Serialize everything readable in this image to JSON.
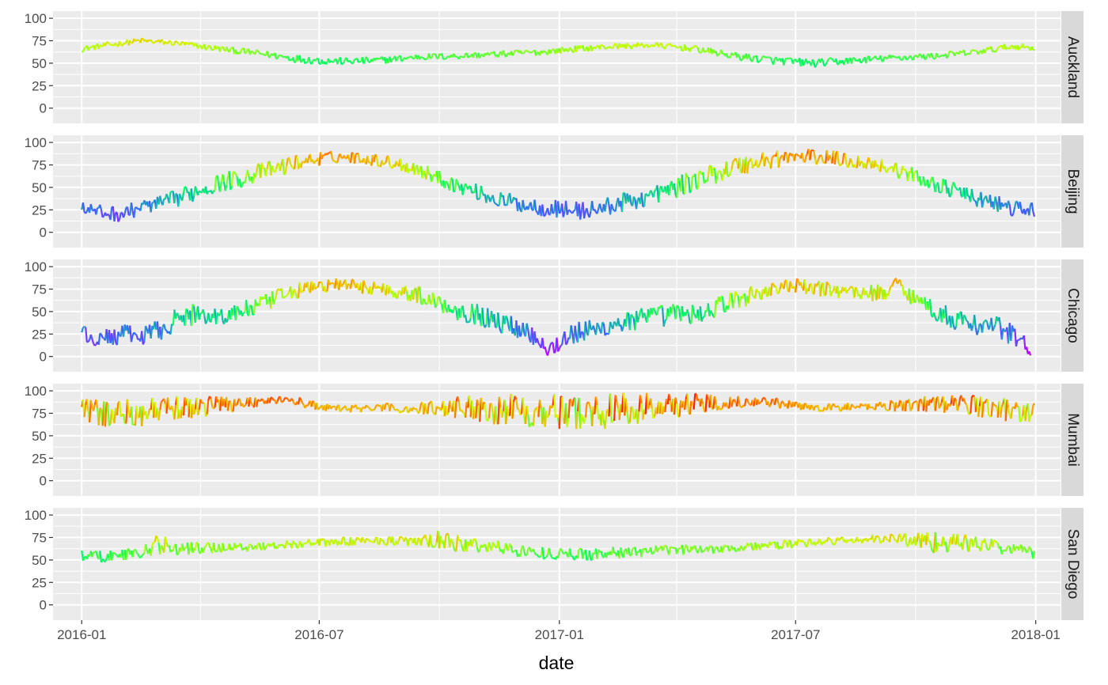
{
  "chart_data": {
    "type": "line",
    "xlabel": "date",
    "ylabel": "",
    "x_ticks": [
      "2016-01",
      "2016-07",
      "2017-01",
      "2017-07",
      "2018-01"
    ],
    "y_ticks": [
      0,
      25,
      50,
      75,
      100
    ],
    "xlim": [
      "2015-12-10",
      "2018-01-20"
    ],
    "ylim": [
      -17,
      108
    ],
    "grid": true,
    "legend": "none",
    "color_scale": {
      "description": "rainbow hue mapped to value",
      "stops": [
        {
          "value": 0,
          "color": "#cc00ff"
        },
        {
          "value": 25,
          "color": "#3366ff"
        },
        {
          "value": 50,
          "color": "#00ff66"
        },
        {
          "value": 70,
          "color": "#ccff00"
        },
        {
          "value": 85,
          "color": "#ff9900"
        },
        {
          "value": 100,
          "color": "#ff0000"
        }
      ]
    },
    "panels": [
      {
        "strip": "Auckland",
        "x": [
          "2016-01-01",
          "2016-01-20",
          "2016-02-15",
          "2016-03-15",
          "2016-04-15",
          "2016-05-15",
          "2016-06-15",
          "2016-07-01",
          "2016-07-20",
          "2016-08-15",
          "2016-09-15",
          "2016-10-15",
          "2016-11-15",
          "2016-12-15",
          "2017-01-15",
          "2017-02-15",
          "2017-03-15",
          "2017-04-15",
          "2017-05-15",
          "2017-06-15",
          "2017-07-15",
          "2017-08-15",
          "2017-09-15",
          "2017-10-15",
          "2017-11-15",
          "2017-12-15",
          "2017-12-31"
        ],
        "y": [
          66,
          70,
          75,
          72,
          66,
          61,
          55,
          53,
          52,
          53,
          57,
          58,
          60,
          62,
          66,
          69,
          70,
          66,
          58,
          53,
          50,
          53,
          56,
          58,
          62,
          69,
          67
        ],
        "spread": [
          7,
          7,
          7,
          7,
          8,
          8,
          10,
          10,
          9,
          9,
          8,
          8,
          8,
          8,
          8,
          7,
          7,
          8,
          9,
          10,
          10,
          9,
          8,
          8,
          8,
          8,
          7
        ]
      },
      {
        "strip": "Beijing",
        "x": [
          "2016-01-01",
          "2016-01-15",
          "2016-02-01",
          "2016-02-15",
          "2016-03-01",
          "2016-03-15",
          "2016-04-01",
          "2016-04-15",
          "2016-05-01",
          "2016-05-15",
          "2016-06-01",
          "2016-06-15",
          "2016-07-01",
          "2016-07-15",
          "2016-08-01",
          "2016-08-15",
          "2016-09-01",
          "2016-09-15",
          "2016-10-01",
          "2016-10-15",
          "2016-11-01",
          "2016-11-15",
          "2016-12-01",
          "2016-12-15",
          "2017-01-01",
          "2017-01-15",
          "2017-02-01",
          "2017-02-15",
          "2017-03-01",
          "2017-03-15",
          "2017-04-01",
          "2017-04-15",
          "2017-05-01",
          "2017-05-15",
          "2017-06-01",
          "2017-06-15",
          "2017-07-01",
          "2017-07-15",
          "2017-08-01",
          "2017-08-15",
          "2017-09-01",
          "2017-09-15",
          "2017-10-01",
          "2017-10-15",
          "2017-11-01",
          "2017-11-15",
          "2017-12-01",
          "2017-12-15",
          "2017-12-31"
        ],
        "y": [
          28,
          22,
          20,
          28,
          32,
          38,
          48,
          55,
          60,
          66,
          72,
          78,
          82,
          84,
          83,
          80,
          76,
          70,
          60,
          52,
          44,
          36,
          32,
          28,
          26,
          24,
          26,
          32,
          36,
          42,
          50,
          58,
          66,
          73,
          78,
          82,
          84,
          84,
          82,
          79,
          76,
          70,
          62,
          54,
          46,
          38,
          32,
          26,
          25
        ],
        "spread": [
          14,
          18,
          18,
          18,
          18,
          20,
          22,
          22,
          22,
          22,
          20,
          18,
          16,
          14,
          14,
          14,
          16,
          18,
          18,
          18,
          18,
          20,
          20,
          20,
          20,
          22,
          22,
          22,
          22,
          22,
          24,
          24,
          24,
          24,
          24,
          22,
          20,
          18,
          18,
          18,
          16,
          18,
          18,
          18,
          18,
          20,
          20,
          20,
          18
        ]
      },
      {
        "strip": "Chicago",
        "x": [
          "2016-01-01",
          "2016-01-10",
          "2016-01-20",
          "2016-02-01",
          "2016-02-15",
          "2016-03-01",
          "2016-03-15",
          "2016-04-01",
          "2016-04-15",
          "2016-05-01",
          "2016-05-15",
          "2016-06-01",
          "2016-06-15",
          "2016-07-01",
          "2016-07-15",
          "2016-08-01",
          "2016-08-15",
          "2016-09-01",
          "2016-09-15",
          "2016-10-01",
          "2016-10-15",
          "2016-11-01",
          "2016-11-15",
          "2016-12-01",
          "2016-12-15",
          "2016-12-25",
          "2017-01-10",
          "2017-02-01",
          "2017-02-15",
          "2017-03-01",
          "2017-03-15",
          "2017-04-01",
          "2017-04-15",
          "2017-05-01",
          "2017-05-15",
          "2017-06-01",
          "2017-06-15",
          "2017-07-01",
          "2017-07-15",
          "2017-08-01",
          "2017-08-15",
          "2017-09-01",
          "2017-09-20",
          "2017-10-01",
          "2017-10-15",
          "2017-11-01",
          "2017-11-15",
          "2017-12-01",
          "2017-12-15",
          "2017-12-28"
        ],
        "y": [
          28,
          18,
          20,
          25,
          22,
          30,
          42,
          48,
          44,
          50,
          56,
          66,
          74,
          78,
          80,
          78,
          76,
          72,
          68,
          60,
          52,
          46,
          38,
          32,
          22,
          8,
          25,
          30,
          38,
          40,
          44,
          48,
          46,
          55,
          62,
          70,
          76,
          78,
          76,
          74,
          72,
          70,
          80,
          64,
          52,
          40,
          36,
          34,
          24,
          8
        ],
        "spread": [
          14,
          20,
          22,
          22,
          22,
          24,
          26,
          24,
          24,
          22,
          22,
          20,
          18,
          16,
          16,
          16,
          16,
          18,
          20,
          22,
          24,
          24,
          24,
          24,
          26,
          24,
          26,
          26,
          26,
          26,
          26,
          24,
          24,
          24,
          22,
          22,
          20,
          18,
          18,
          18,
          18,
          20,
          22,
          22,
          24,
          24,
          24,
          24,
          26,
          18
        ]
      },
      {
        "strip": "Mumbai",
        "x": [
          "2016-01-01",
          "2016-01-20",
          "2016-02-15",
          "2016-03-15",
          "2016-04-15",
          "2016-05-15",
          "2016-06-01",
          "2016-06-15",
          "2016-07-01",
          "2016-07-15",
          "2016-08-15",
          "2016-09-15",
          "2016-10-15",
          "2016-11-15",
          "2016-12-15",
          "2017-01-15",
          "2017-02-15",
          "2017-03-15",
          "2017-04-15",
          "2017-05-15",
          "2017-06-01",
          "2017-06-15",
          "2017-07-01",
          "2017-07-15",
          "2017-08-15",
          "2017-09-15",
          "2017-10-15",
          "2017-11-15",
          "2017-12-15",
          "2017-12-31"
        ],
        "y": [
          78,
          74,
          76,
          80,
          85,
          88,
          90,
          88,
          82,
          80,
          81,
          80,
          82,
          80,
          78,
          76,
          78,
          82,
          86,
          88,
          88,
          87,
          83,
          81,
          82,
          84,
          86,
          84,
          78,
          76
        ],
        "spread": [
          30,
          32,
          32,
          28,
          22,
          12,
          8,
          12,
          10,
          8,
          10,
          14,
          26,
          36,
          38,
          40,
          40,
          34,
          24,
          14,
          10,
          12,
          10,
          8,
          10,
          14,
          20,
          26,
          28,
          24
        ]
      },
      {
        "strip": "San Diego",
        "x": [
          "2016-01-01",
          "2016-01-20",
          "2016-02-15",
          "2016-03-01",
          "2016-03-15",
          "2016-04-15",
          "2016-05-15",
          "2016-06-15",
          "2016-07-15",
          "2016-08-15",
          "2016-09-15",
          "2016-10-01",
          "2016-10-15",
          "2016-11-15",
          "2016-12-15",
          "2017-01-15",
          "2017-02-15",
          "2017-03-15",
          "2017-04-15",
          "2017-05-15",
          "2017-06-15",
          "2017-07-15",
          "2017-08-15",
          "2017-09-15",
          "2017-10-01",
          "2017-10-15",
          "2017-11-15",
          "2017-12-15",
          "2017-12-31"
        ],
        "y": [
          55,
          54,
          58,
          68,
          62,
          64,
          65,
          68,
          70,
          72,
          70,
          72,
          68,
          64,
          58,
          56,
          58,
          60,
          62,
          64,
          66,
          70,
          72,
          74,
          72,
          70,
          68,
          62,
          58
        ],
        "spread": [
          14,
          14,
          14,
          24,
          16,
          14,
          10,
          10,
          10,
          10,
          12,
          22,
          20,
          16,
          14,
          14,
          14,
          12,
          12,
          12,
          10,
          10,
          10,
          12,
          22,
          24,
          20,
          14,
          14
        ]
      }
    ]
  }
}
